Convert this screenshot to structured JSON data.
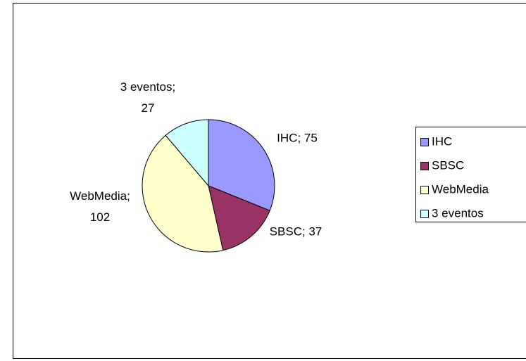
{
  "chart_data": {
    "type": "pie",
    "categories": [
      "IHC",
      "SBSC",
      "WebMedia",
      "3 eventos"
    ],
    "values": [
      75,
      37,
      102,
      27
    ],
    "value_labels": [
      "IHC; 75",
      "SBSC; 37",
      "WebMedia; 102",
      "3 eventos; 27"
    ],
    "colors": [
      "#9999ff",
      "#993366",
      "#ffffcc",
      "#ccffff"
    ],
    "legend": "right"
  }
}
